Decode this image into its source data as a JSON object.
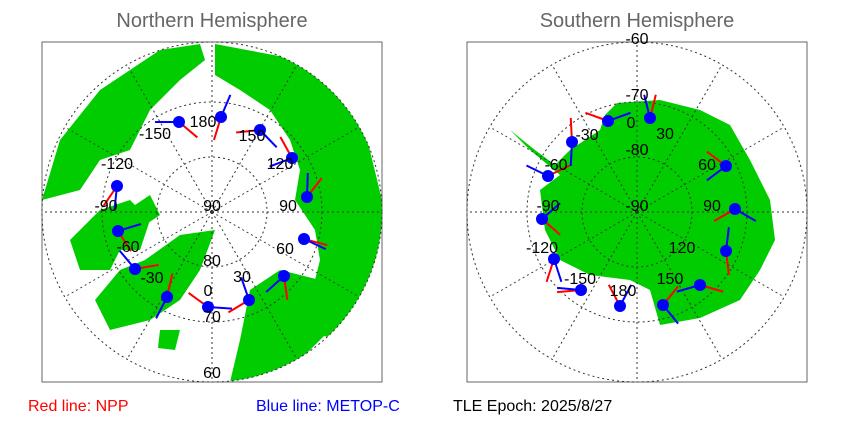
{
  "north": {
    "title": "Northern Hemisphere",
    "lat_labels": [
      "90",
      "80",
      "70",
      "60"
    ],
    "lon_labels": [
      "180",
      "-150",
      "150",
      "120",
      "-120",
      "90",
      "-90",
      "60",
      "-60",
      "30",
      "-30",
      "0"
    ]
  },
  "south": {
    "title": "Southern Hemisphere",
    "lat_labels": [
      "-60",
      "-70",
      "-80",
      "-90"
    ],
    "lon_labels": [
      "0",
      "30",
      "-30",
      "60",
      "-60",
      "90",
      "-90",
      "120",
      "-120",
      "150",
      "-150",
      "180"
    ]
  },
  "legend": {
    "red_label": "Red line: NPP",
    "blue_label": "Blue line: METOP-C",
    "epoch": "TLE Epoch: 2025/8/27"
  },
  "colors": {
    "land": "#00cc00",
    "npp": "#ff0000",
    "metop": "#0000ff",
    "marker": "#0000ff",
    "title": "#666666"
  }
}
